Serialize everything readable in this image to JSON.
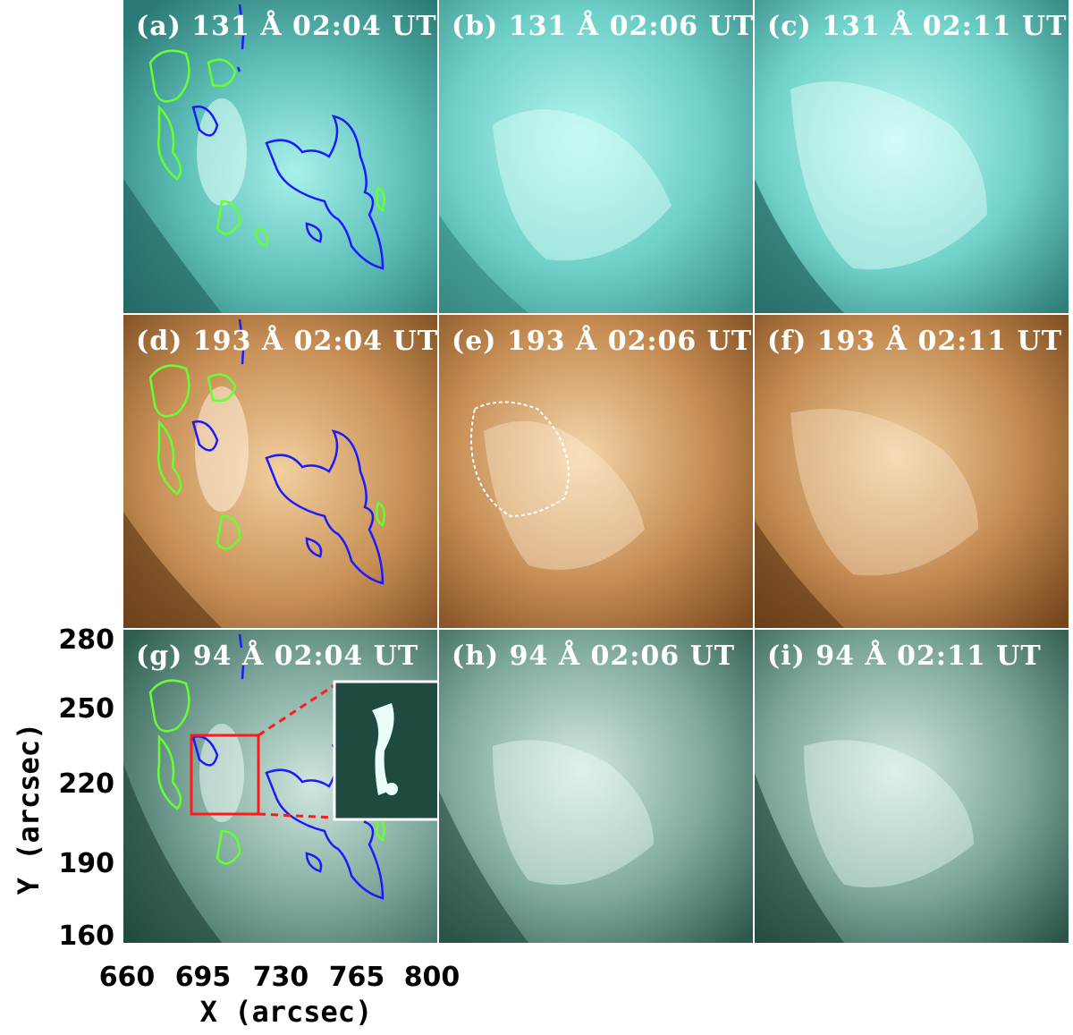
{
  "panels": [
    {
      "id": "a",
      "label": "(a) 131 Å 02:04 UT",
      "theme": "teal"
    },
    {
      "id": "b",
      "label": "(b) 131 Å 02:06 UT",
      "theme": "teal"
    },
    {
      "id": "c",
      "label": "(c) 131 Å 02:11 UT",
      "theme": "teal"
    },
    {
      "id": "d",
      "label": "(d) 193 Å 02:04 UT",
      "theme": "brown"
    },
    {
      "id": "e",
      "label": "(e) 193 Å 02:06 UT",
      "theme": "brown"
    },
    {
      "id": "f",
      "label": "(f) 193 Å 02:11 UT",
      "theme": "brown"
    },
    {
      "id": "g",
      "label": "(g) 94 Å 02:04 UT",
      "theme": "green"
    },
    {
      "id": "h",
      "label": "(h) 94 Å 02:06 UT",
      "theme": "green"
    },
    {
      "id": "i",
      "label": "(i) 94 Å 02:11 UT",
      "theme": "green"
    }
  ],
  "axes": {
    "xlabel": "X (arcsec)",
    "ylabel": "Y (arcsec)",
    "xticks": [
      "660",
      "695",
      "730",
      "765",
      "800"
    ],
    "yticks": [
      "280",
      "250",
      "220",
      "190",
      "160"
    ]
  },
  "colors": {
    "teal": "#4fb8b0",
    "brown": "#9a6432",
    "green": "#3e7c6e",
    "contour_positive": "#66ff33",
    "contour_negative": "#1a1aff",
    "inset_box": "#ff1a1a"
  }
}
